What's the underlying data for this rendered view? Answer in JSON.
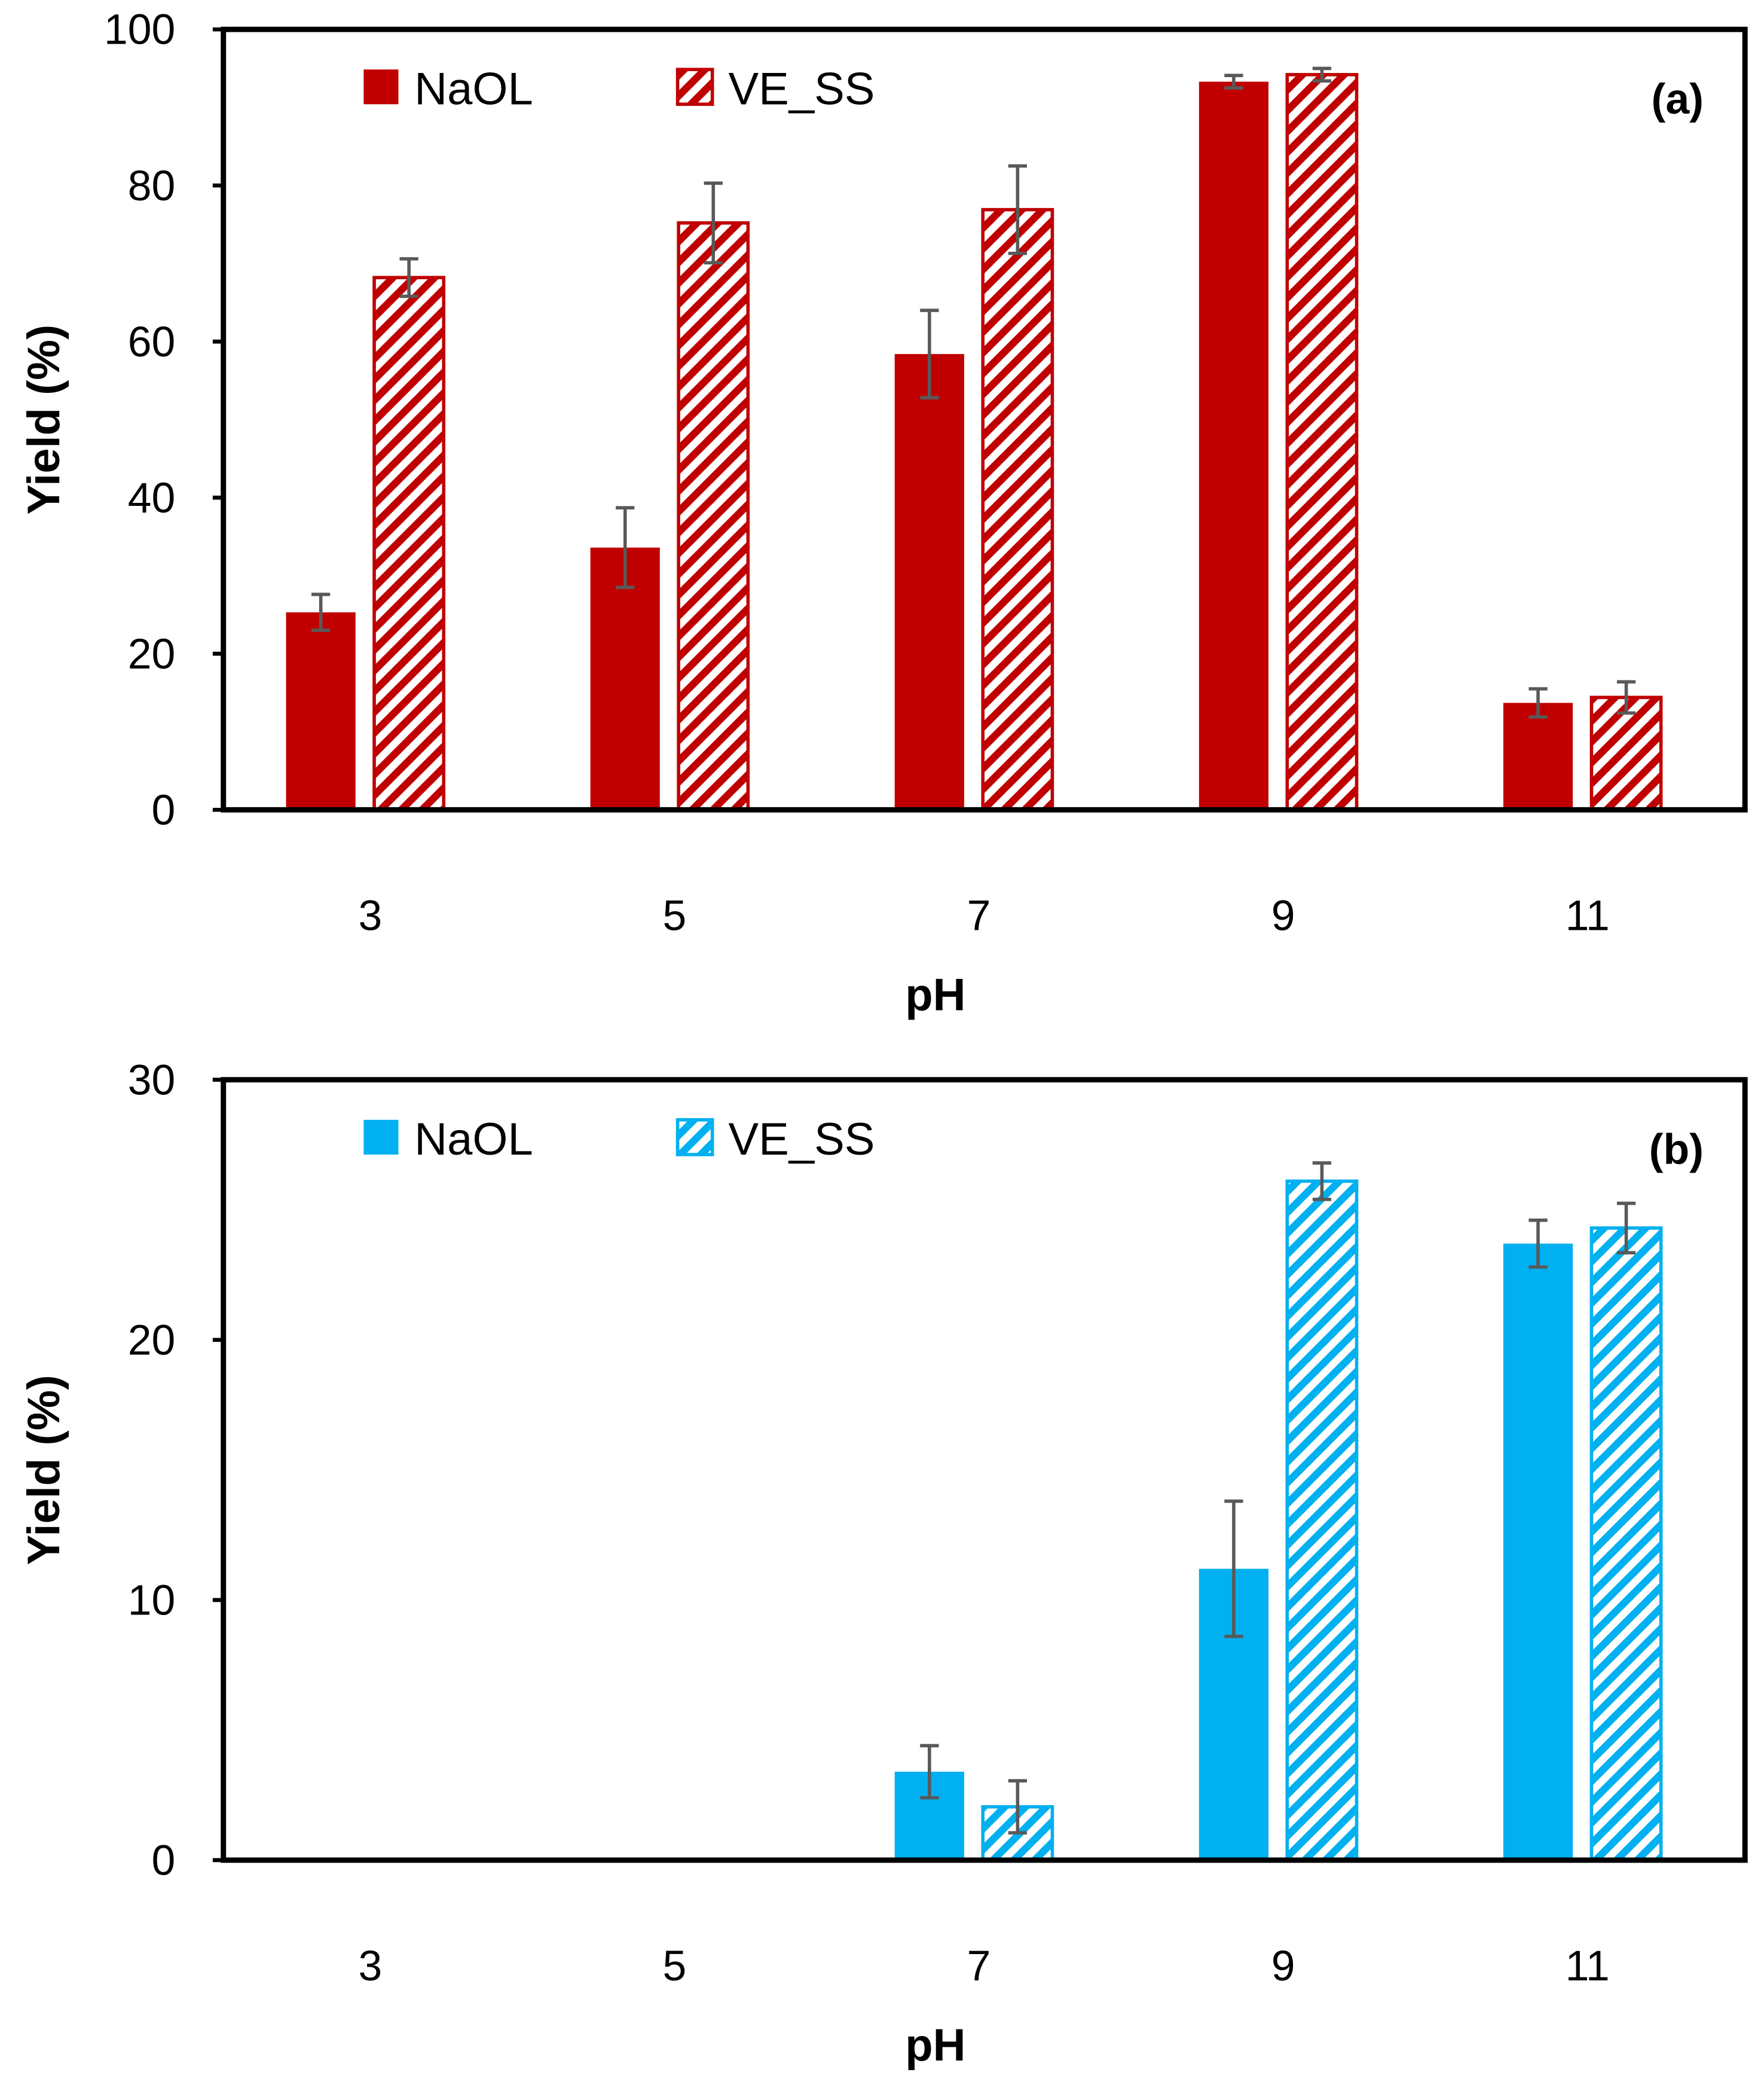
{
  "chart_data": [
    {
      "type": "bar",
      "panel_label": "(a)",
      "xlabel": "pH",
      "ylabel": "Yield (%)",
      "ylim": [
        0,
        100
      ],
      "yticks": [
        0,
        20,
        40,
        60,
        80,
        100
      ],
      "categories": [
        "3",
        "5",
        "7",
        "9",
        "11"
      ],
      "legend_position": "top-left",
      "color": "#C00000",
      "series": [
        {
          "name": "NaOL",
          "style": "solid",
          "values": [
            25.3,
            33.6,
            58.4,
            93.3,
            13.7
          ],
          "errors": [
            2.3,
            5.1,
            5.6,
            0.8,
            1.8
          ]
        },
        {
          "name": "VE_SS",
          "style": "hatched",
          "values": [
            68.2,
            75.2,
            76.9,
            94.2,
            14.4
          ],
          "errors": [
            2.4,
            5.1,
            5.6,
            0.8,
            2.0
          ]
        }
      ]
    },
    {
      "type": "bar",
      "panel_label": "(b)",
      "xlabel": "pH",
      "ylabel": "Yield (%)",
      "ylim": [
        0,
        30
      ],
      "yticks": [
        0,
        10,
        20,
        30
      ],
      "categories": [
        "3",
        "5",
        "7",
        "9",
        "11"
      ],
      "legend_position": "top-left",
      "color": "#00B0F0",
      "series": [
        {
          "name": "NaOL",
          "style": "solid",
          "values": [
            0,
            0,
            3.4,
            11.2,
            23.7
          ],
          "errors": [
            0,
            0,
            1.0,
            2.6,
            0.9
          ]
        },
        {
          "name": "VE_SS",
          "style": "hatched",
          "values": [
            0,
            0,
            2.05,
            26.1,
            24.3
          ],
          "errors": [
            0,
            0,
            1.0,
            0.7,
            0.95
          ]
        }
      ]
    }
  ]
}
